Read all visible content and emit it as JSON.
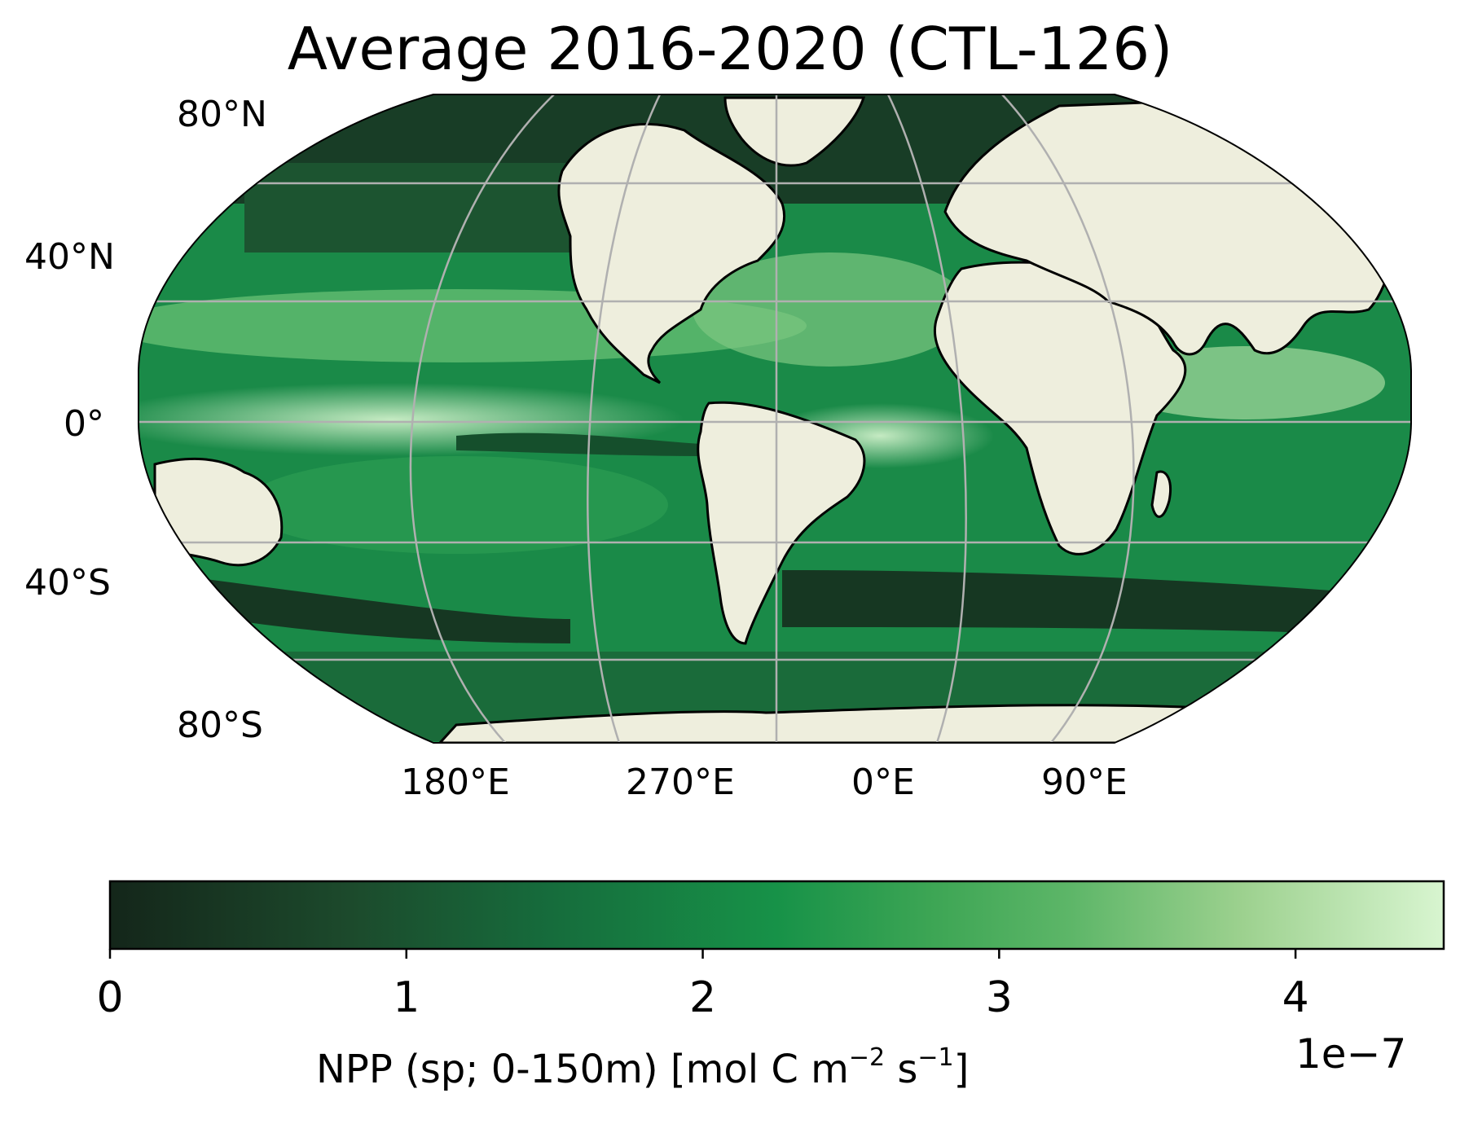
{
  "title": "Average 2016-2020 (CTL-126)",
  "map": {
    "projection": "robinson",
    "land_color": "#eeeedd",
    "gridline_color": "#b0b0b0",
    "lat_labels": [
      "80°N",
      "40°N",
      "0°",
      "40°S",
      "80°S"
    ],
    "lon_labels": [
      "180°E",
      "270°E",
      "0°E",
      "90°E"
    ]
  },
  "colorbar": {
    "colormap": "Greens_r",
    "colors": [
      "#00441b",
      "#006d2c",
      "#238b45",
      "#41ab5d",
      "#74c476",
      "#a1d99b",
      "#c7e9c0",
      "#e5f5e0"
    ],
    "dark_end": "#14261a",
    "light_end": "#d8f5d0",
    "min": 0,
    "max": 4.5,
    "ticks": [
      0,
      1,
      2,
      3,
      4
    ],
    "tick_labels": [
      "0",
      "1",
      "2",
      "3",
      "4"
    ],
    "label_main": "NPP (sp; 0-150m) [mol C m",
    "label_exp1": "−2",
    "label_mid": " s",
    "label_exp2": "−1",
    "label_end": "]",
    "offset_text": "1e−7"
  }
}
